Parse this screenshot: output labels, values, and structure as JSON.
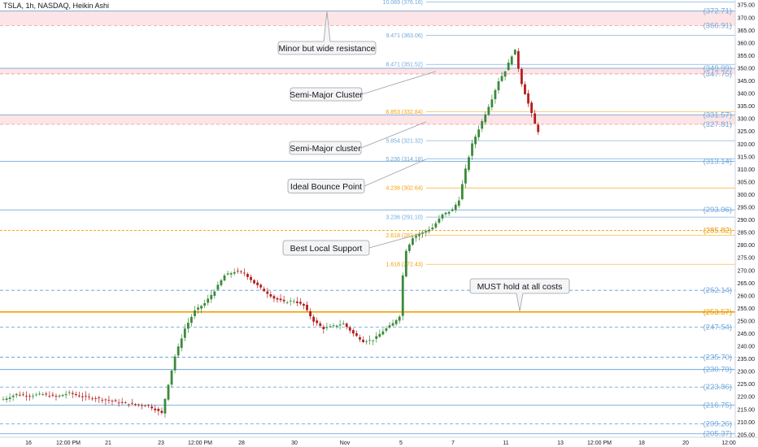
{
  "header": {
    "symbol_title": "TSLA, 1h, NASDAQ, Heikin Ashi"
  },
  "colors": {
    "blue_level": "#5b9bd5",
    "orange_level": "#f59f00",
    "fib_orange": "#f59f00",
    "fib_blue": "#6fa8dc",
    "resistance_zone": "#fde4e6",
    "resistance_dash": "#ef9a9a",
    "candle_up": "#3a8a3a",
    "candle_down": "#b71c1c",
    "label_blue": "#6fa8dc",
    "label_orange": "#e69500"
  },
  "chart_data": {
    "type": "candlestick",
    "y_axis": {
      "range": [
        204,
        377
      ],
      "ticks": [
        375,
        370,
        365,
        360,
        355,
        350,
        345,
        340,
        335,
        330,
        325,
        320,
        315,
        310,
        305,
        300,
        295,
        290,
        285,
        280,
        275,
        270,
        265,
        260,
        255,
        250,
        245,
        240,
        235,
        230,
        225,
        220,
        215,
        210,
        205
      ]
    },
    "x_axis": {
      "labels": [
        "16",
        "12:00 PM",
        "21",
        "23",
        "12:00 PM",
        "28",
        "30",
        "Nov",
        "5",
        "7",
        "11",
        "13",
        "12:00 PM",
        "18",
        "20",
        "12:00"
      ]
    },
    "right_levels": [
      {
        "value": 372.71,
        "label": "(372.71)",
        "color": "blue"
      },
      {
        "value": 366.91,
        "label": "(366.91)",
        "color": "blue"
      },
      {
        "value": 349.99,
        "label": "(349.99)",
        "color": "blue"
      },
      {
        "value": 347.75,
        "label": "(347.75)",
        "color": "blue"
      },
      {
        "value": 331.57,
        "label": "(331.57)",
        "color": "blue"
      },
      {
        "value": 327.81,
        "label": "(327.81)",
        "color": "blue"
      },
      {
        "value": 313.14,
        "label": "(313.14)",
        "color": "blue"
      },
      {
        "value": 293.96,
        "label": "(293.96)",
        "color": "blue"
      },
      {
        "value": 285.82,
        "label": "(285.82)",
        "color": "orange"
      },
      {
        "value": 262.14,
        "label": "(262.14)",
        "color": "blue"
      },
      {
        "value": 253.57,
        "label": "(253.57)",
        "color": "orange"
      },
      {
        "value": 247.54,
        "label": "(247.54)",
        "color": "blue"
      },
      {
        "value": 235.7,
        "label": "(235.70)",
        "color": "blue"
      },
      {
        "value": 230.79,
        "label": "(230.79)",
        "color": "blue"
      },
      {
        "value": 223.86,
        "label": "(223.86)",
        "color": "blue"
      },
      {
        "value": 216.75,
        "label": "(216.75)",
        "color": "blue"
      },
      {
        "value": 209.26,
        "label": "(209.26)",
        "color": "blue"
      },
      {
        "value": 205.37,
        "label": "(205.37)",
        "color": "blue"
      }
    ],
    "fib_levels": [
      {
        "value": 376.16,
        "label": "10.089 (376.16)",
        "color": "blue"
      },
      {
        "value": 363.06,
        "label": "9.471 (363.06)",
        "color": "blue"
      },
      {
        "value": 351.52,
        "label": "8.471 (351.52)",
        "color": "blue"
      },
      {
        "value": 332.84,
        "label": "6.853 (332.84)",
        "color": "orange"
      },
      {
        "value": 321.32,
        "label": "5.854 (321.32)",
        "color": "blue"
      },
      {
        "value": 314.18,
        "label": "5.236 (314.18)",
        "color": "blue"
      },
      {
        "value": 302.64,
        "label": "4.236 (302.64)",
        "color": "orange"
      },
      {
        "value": 291.1,
        "label": "3.236 (291.10)",
        "color": "blue"
      },
      {
        "value": 283.97,
        "label": "2.618 (283.97)",
        "color": "orange"
      },
      {
        "value": 272.43,
        "label": "1.618 (272.43)",
        "color": "orange"
      }
    ],
    "zones": [
      {
        "from": 366.91,
        "to": 372.71
      },
      {
        "from": 347.75,
        "to": 349.99
      },
      {
        "from": 327.81,
        "to": 331.57
      }
    ],
    "annotations": [
      {
        "text": "Minor but wide resistance",
        "anchor_value": 372.71
      },
      {
        "text": "Semi-Major Cluster",
        "anchor_value": 348.8
      },
      {
        "text": "Semi-Major cluster",
        "anchor_value": 328.8
      },
      {
        "text": "Ideal Bounce Point",
        "anchor_value": 314.0
      },
      {
        "text": "Best Local Support",
        "anchor_value": 285.5
      },
      {
        "text": "MUST hold at all costs",
        "anchor_value": 253.57
      }
    ],
    "series_path": [
      [
        0,
        219
      ],
      [
        4,
        221
      ],
      [
        8,
        220.5
      ],
      [
        12,
        221
      ],
      [
        16,
        220
      ],
      [
        20,
        221.5
      ],
      [
        24,
        220
      ],
      [
        28,
        219.5
      ],
      [
        32,
        218.5
      ],
      [
        36,
        217.5
      ],
      [
        40,
        217
      ],
      [
        44,
        216.5
      ],
      [
        46,
        215
      ],
      [
        48,
        213.5
      ],
      [
        50,
        225
      ],
      [
        52,
        236
      ],
      [
        55,
        247
      ],
      [
        58,
        254
      ],
      [
        61,
        257
      ],
      [
        64,
        262
      ],
      [
        67,
        268
      ],
      [
        70,
        269.5
      ],
      [
        73,
        269
      ],
      [
        76,
        265
      ],
      [
        79,
        262
      ],
      [
        82,
        259
      ],
      [
        85,
        257.5
      ],
      [
        88,
        258
      ],
      [
        91,
        256
      ],
      [
        94,
        250
      ],
      [
        97,
        247
      ],
      [
        100,
        248
      ],
      [
        103,
        249
      ],
      [
        106,
        245
      ],
      [
        109,
        242
      ],
      [
        112,
        242.5
      ],
      [
        115,
        246
      ],
      [
        118,
        249
      ],
      [
        120,
        252
      ],
      [
        121,
        268
      ],
      [
        122,
        278
      ],
      [
        124,
        283
      ],
      [
        127,
        285
      ],
      [
        130,
        287
      ],
      [
        133,
        292
      ],
      [
        136,
        294
      ],
      [
        138,
        298
      ],
      [
        140,
        310
      ],
      [
        142,
        320
      ],
      [
        144,
        326
      ],
      [
        146,
        332
      ],
      [
        148,
        338
      ],
      [
        150,
        345
      ],
      [
        152,
        349
      ],
      [
        154,
        355
      ],
      [
        155,
        357
      ],
      [
        156,
        350
      ],
      [
        157,
        344
      ],
      [
        158,
        340
      ],
      [
        159,
        336
      ],
      [
        160,
        332
      ],
      [
        161,
        328
      ],
      [
        162,
        325
      ]
    ],
    "grid": false
  }
}
